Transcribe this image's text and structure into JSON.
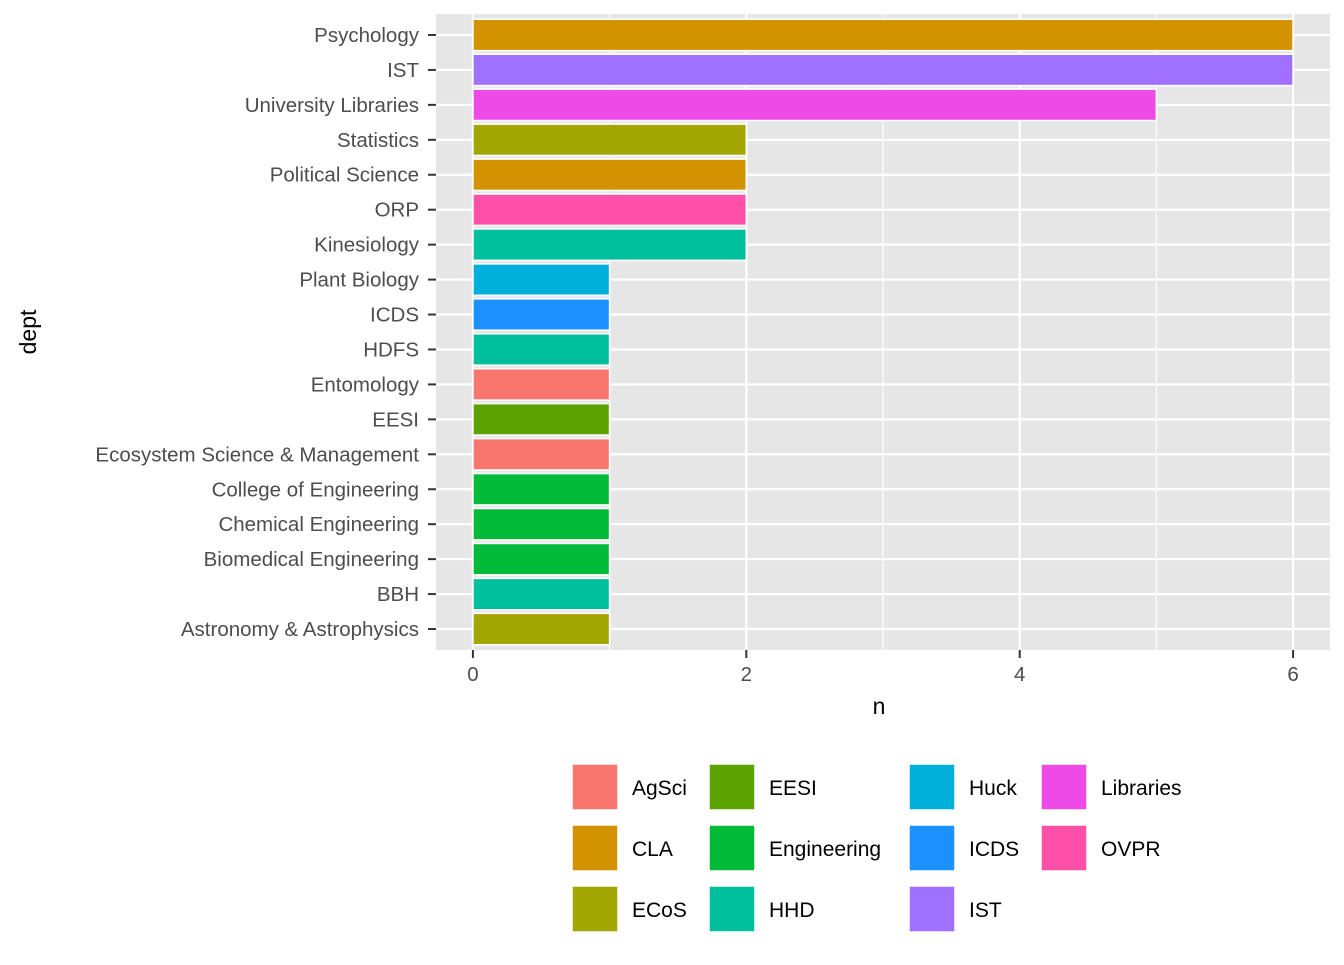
{
  "chart_data": {
    "type": "bar",
    "orientation": "horizontal",
    "xlabel": "n",
    "ylabel": "dept",
    "xlim": [
      -0.27,
      6.27
    ],
    "x_ticks": [
      0,
      2,
      4,
      6
    ],
    "x_minor_ticks": [
      1,
      3,
      5
    ],
    "grid": true,
    "legend_position": "bottom",
    "panel_background": "#e6e6e6",
    "grid_color": "#ffffff",
    "bars": [
      {
        "dept": "Astronomy & Astrophysics",
        "n": 1,
        "group": "ECoS"
      },
      {
        "dept": "BBH",
        "n": 1,
        "group": "HHD"
      },
      {
        "dept": "Biomedical Engineering",
        "n": 1,
        "group": "Engineering"
      },
      {
        "dept": "Chemical Engineering",
        "n": 1,
        "group": "Engineering"
      },
      {
        "dept": "College of Engineering",
        "n": 1,
        "group": "Engineering"
      },
      {
        "dept": "Ecosystem Science & Management",
        "n": 1,
        "group": "AgSci"
      },
      {
        "dept": "EESI",
        "n": 1,
        "group": "EESI"
      },
      {
        "dept": "Entomology",
        "n": 1,
        "group": "AgSci"
      },
      {
        "dept": "HDFS",
        "n": 1,
        "group": "HHD"
      },
      {
        "dept": "ICDS",
        "n": 1,
        "group": "ICDS"
      },
      {
        "dept": "Plant Biology",
        "n": 1,
        "group": "Huck"
      },
      {
        "dept": "Kinesiology",
        "n": 2,
        "group": "HHD"
      },
      {
        "dept": "ORP",
        "n": 2,
        "group": "OVPR"
      },
      {
        "dept": "Political Science",
        "n": 2,
        "group": "CLA"
      },
      {
        "dept": "Statistics",
        "n": 2,
        "group": "ECoS"
      },
      {
        "dept": "University Libraries",
        "n": 5,
        "group": "Libraries"
      },
      {
        "dept": "IST",
        "n": 6,
        "group": "IST"
      },
      {
        "dept": "Psychology",
        "n": 6,
        "group": "CLA"
      }
    ],
    "legend": {
      "columns": [
        [
          "AgSci",
          "CLA",
          "ECoS"
        ],
        [
          "EESI",
          "Engineering",
          "HHD"
        ],
        [
          "Huck",
          "ICDS",
          "IST"
        ],
        [
          "Libraries",
          "OVPR"
        ]
      ]
    },
    "group_colors": {
      "AgSci": "#F8766D",
      "CLA": "#D39200",
      "ECoS": "#A3A500",
      "EESI": "#5BA300",
      "Engineering": "#00BA38",
      "HHD": "#00BF9C",
      "Huck": "#00B0DA",
      "ICDS": "#1B90FF",
      "IST": "#A070FF",
      "Libraries": "#EE4AE8",
      "OVPR": "#FF4FA8"
    }
  }
}
